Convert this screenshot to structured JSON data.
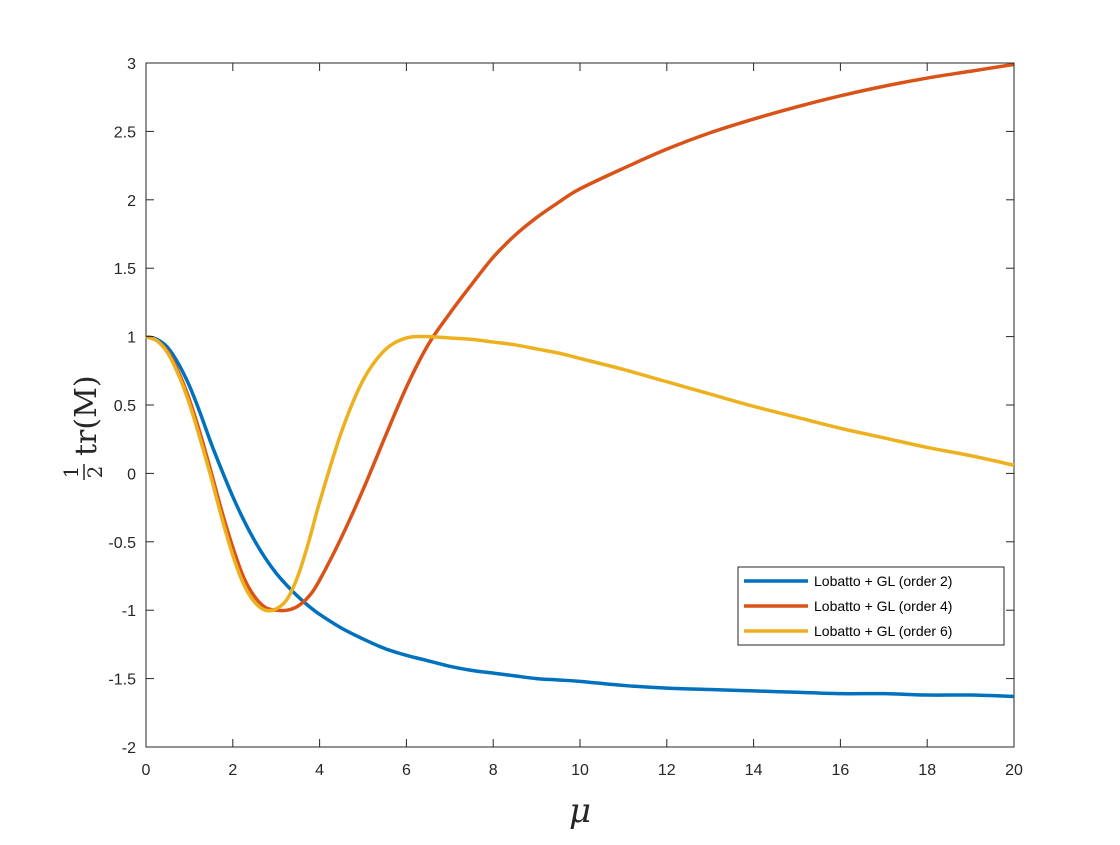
{
  "chart_data": {
    "type": "line",
    "title": "",
    "xlabel": "μ",
    "ylabel": {
      "frac_num": "1",
      "frac_den": "2",
      "text": "tr(M)"
    },
    "xlim": [
      0,
      20
    ],
    "ylim": [
      -2,
      3
    ],
    "xticks": [
      "0",
      "2",
      "4",
      "6",
      "8",
      "10",
      "12",
      "14",
      "16",
      "18",
      "20"
    ],
    "yticks": [
      "-2",
      "-1.5",
      "-1",
      "-0.5",
      "0",
      "0.5",
      "1",
      "1.5",
      "2",
      "2.5",
      "3"
    ],
    "grid": false,
    "legend_position": "lower-right",
    "x": [
      0,
      0.25,
      0.5,
      0.75,
      1,
      1.25,
      1.5,
      1.75,
      2,
      2.25,
      2.5,
      2.75,
      3,
      3.25,
      3.5,
      3.75,
      4,
      4.5,
      5,
      5.5,
      6,
      6.5,
      7,
      7.5,
      8,
      8.5,
      9,
      9.5,
      10,
      11,
      12,
      13,
      14,
      15,
      16,
      17,
      18,
      19,
      20
    ],
    "series": [
      {
        "name": "Lobatto + GL (order 2)",
        "color": "#0072BD",
        "values": [
          1.0,
          0.98,
          0.92,
          0.8,
          0.64,
          0.44,
          0.22,
          0.02,
          -0.17,
          -0.34,
          -0.49,
          -0.62,
          -0.73,
          -0.82,
          -0.9,
          -0.97,
          -1.03,
          -1.13,
          -1.21,
          -1.28,
          -1.33,
          -1.37,
          -1.41,
          -1.44,
          -1.46,
          -1.48,
          -1.5,
          -1.51,
          -1.52,
          -1.55,
          -1.57,
          -1.58,
          -1.59,
          -1.6,
          -1.61,
          -1.61,
          -1.62,
          -1.62,
          -1.63
        ]
      },
      {
        "name": "Lobatto + GL (order 4)",
        "color": "#D95319",
        "values": [
          1.0,
          0.97,
          0.89,
          0.74,
          0.54,
          0.29,
          0.01,
          -0.28,
          -0.54,
          -0.76,
          -0.9,
          -0.98,
          -1.0,
          -1.0,
          -0.97,
          -0.9,
          -0.78,
          -0.47,
          -0.12,
          0.26,
          0.63,
          0.94,
          1.17,
          1.38,
          1.58,
          1.74,
          1.87,
          1.98,
          2.08,
          2.23,
          2.37,
          2.49,
          2.59,
          2.68,
          2.76,
          2.83,
          2.89,
          2.94,
          2.99
        ]
      },
      {
        "name": "Lobatto + GL (order 6)",
        "color": "#EDB120",
        "values": [
          1.0,
          0.97,
          0.88,
          0.72,
          0.51,
          0.25,
          -0.03,
          -0.33,
          -0.6,
          -0.81,
          -0.94,
          -1.0,
          -0.99,
          -0.92,
          -0.75,
          -0.5,
          -0.21,
          0.3,
          0.68,
          0.9,
          0.99,
          1.0,
          0.99,
          0.98,
          0.96,
          0.94,
          0.91,
          0.88,
          0.84,
          0.76,
          0.67,
          0.58,
          0.49,
          0.41,
          0.33,
          0.26,
          0.19,
          0.13,
          0.06
        ]
      }
    ]
  }
}
